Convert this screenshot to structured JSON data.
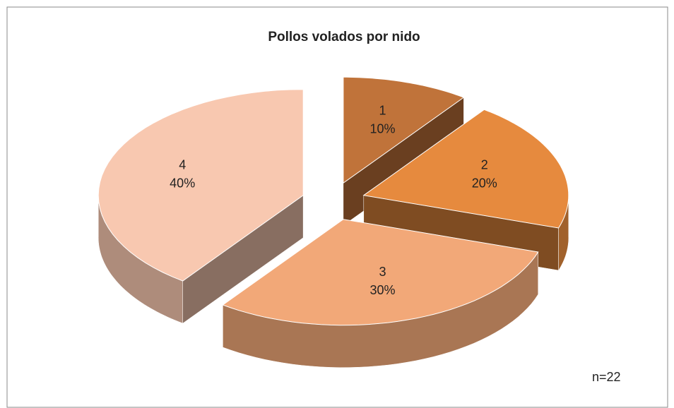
{
  "chart_data": {
    "type": "pie",
    "title": "Pollos volados por nido",
    "categories": [
      "1",
      "2",
      "3",
      "4"
    ],
    "values": [
      10,
      20,
      30,
      40
    ],
    "value_labels": [
      "10%",
      "20%",
      "30%",
      "40%"
    ],
    "colors": [
      "#c0733a",
      "#e68a3e",
      "#f2a878",
      "#f8c8b0"
    ],
    "annotation": "n=22"
  }
}
